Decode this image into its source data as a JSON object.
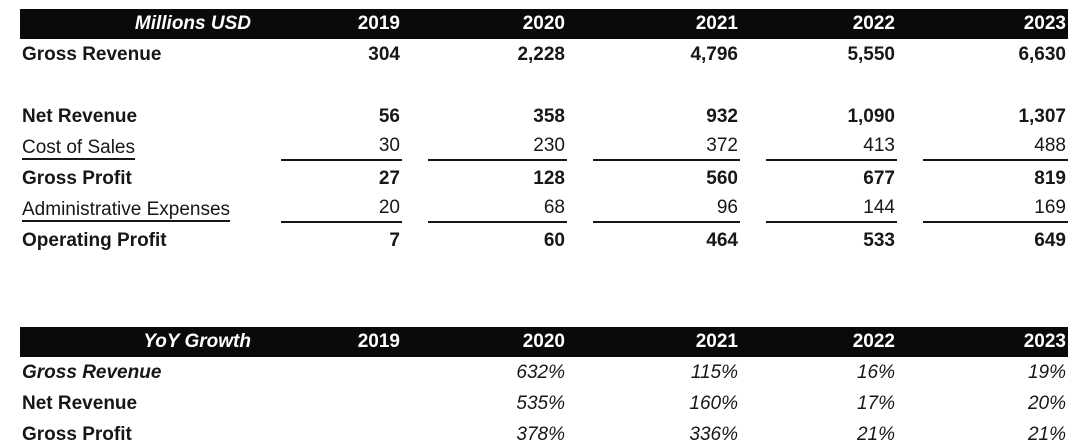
{
  "colors": {
    "header_bg": "#0a0a0a",
    "header_text": "#ffffff",
    "body_text": "#171717",
    "background": "#ffffff"
  },
  "chart_data": [
    {
      "type": "table",
      "title": "Millions USD",
      "years": [
        "2019",
        "2020",
        "2021",
        "2022",
        "2023"
      ],
      "rows": [
        {
          "label": "Gross Revenue",
          "emphasis": "bold",
          "values": [
            "304",
            "2,228",
            "4,796",
            "5,550",
            "6,630"
          ]
        },
        {
          "label": "Net Revenue",
          "emphasis": "bold",
          "values": [
            "56",
            "358",
            "932",
            "1,090",
            "1,307"
          ]
        },
        {
          "label": "Cost of Sales",
          "emphasis": "underline",
          "values": [
            "30",
            "230",
            "372",
            "413",
            "488"
          ]
        },
        {
          "label": "Gross Profit",
          "emphasis": "bold",
          "values": [
            "27",
            "128",
            "560",
            "677",
            "819"
          ]
        },
        {
          "label": "Administrative Expenses",
          "emphasis": "underline",
          "values": [
            "20",
            "68",
            "96",
            "144",
            "169"
          ]
        },
        {
          "label": "Operating Profit",
          "emphasis": "bold",
          "values": [
            "7",
            "60",
            "464",
            "533",
            "649"
          ]
        }
      ]
    },
    {
      "type": "table",
      "title": "YoY Growth",
      "years": [
        "2019",
        "2020",
        "2021",
        "2022",
        "2023"
      ],
      "rows": [
        {
          "label": "Gross Revenue",
          "emphasis": "bold-italic",
          "values": [
            "",
            "632%",
            "115%",
            "16%",
            "19%"
          ]
        },
        {
          "label": "Net Revenue",
          "emphasis": "bold",
          "values": [
            "",
            "535%",
            "160%",
            "17%",
            "20%"
          ]
        },
        {
          "label": "Gross Profit",
          "emphasis": "bold",
          "values": [
            "",
            "378%",
            "336%",
            "21%",
            "21%"
          ]
        }
      ]
    }
  ]
}
